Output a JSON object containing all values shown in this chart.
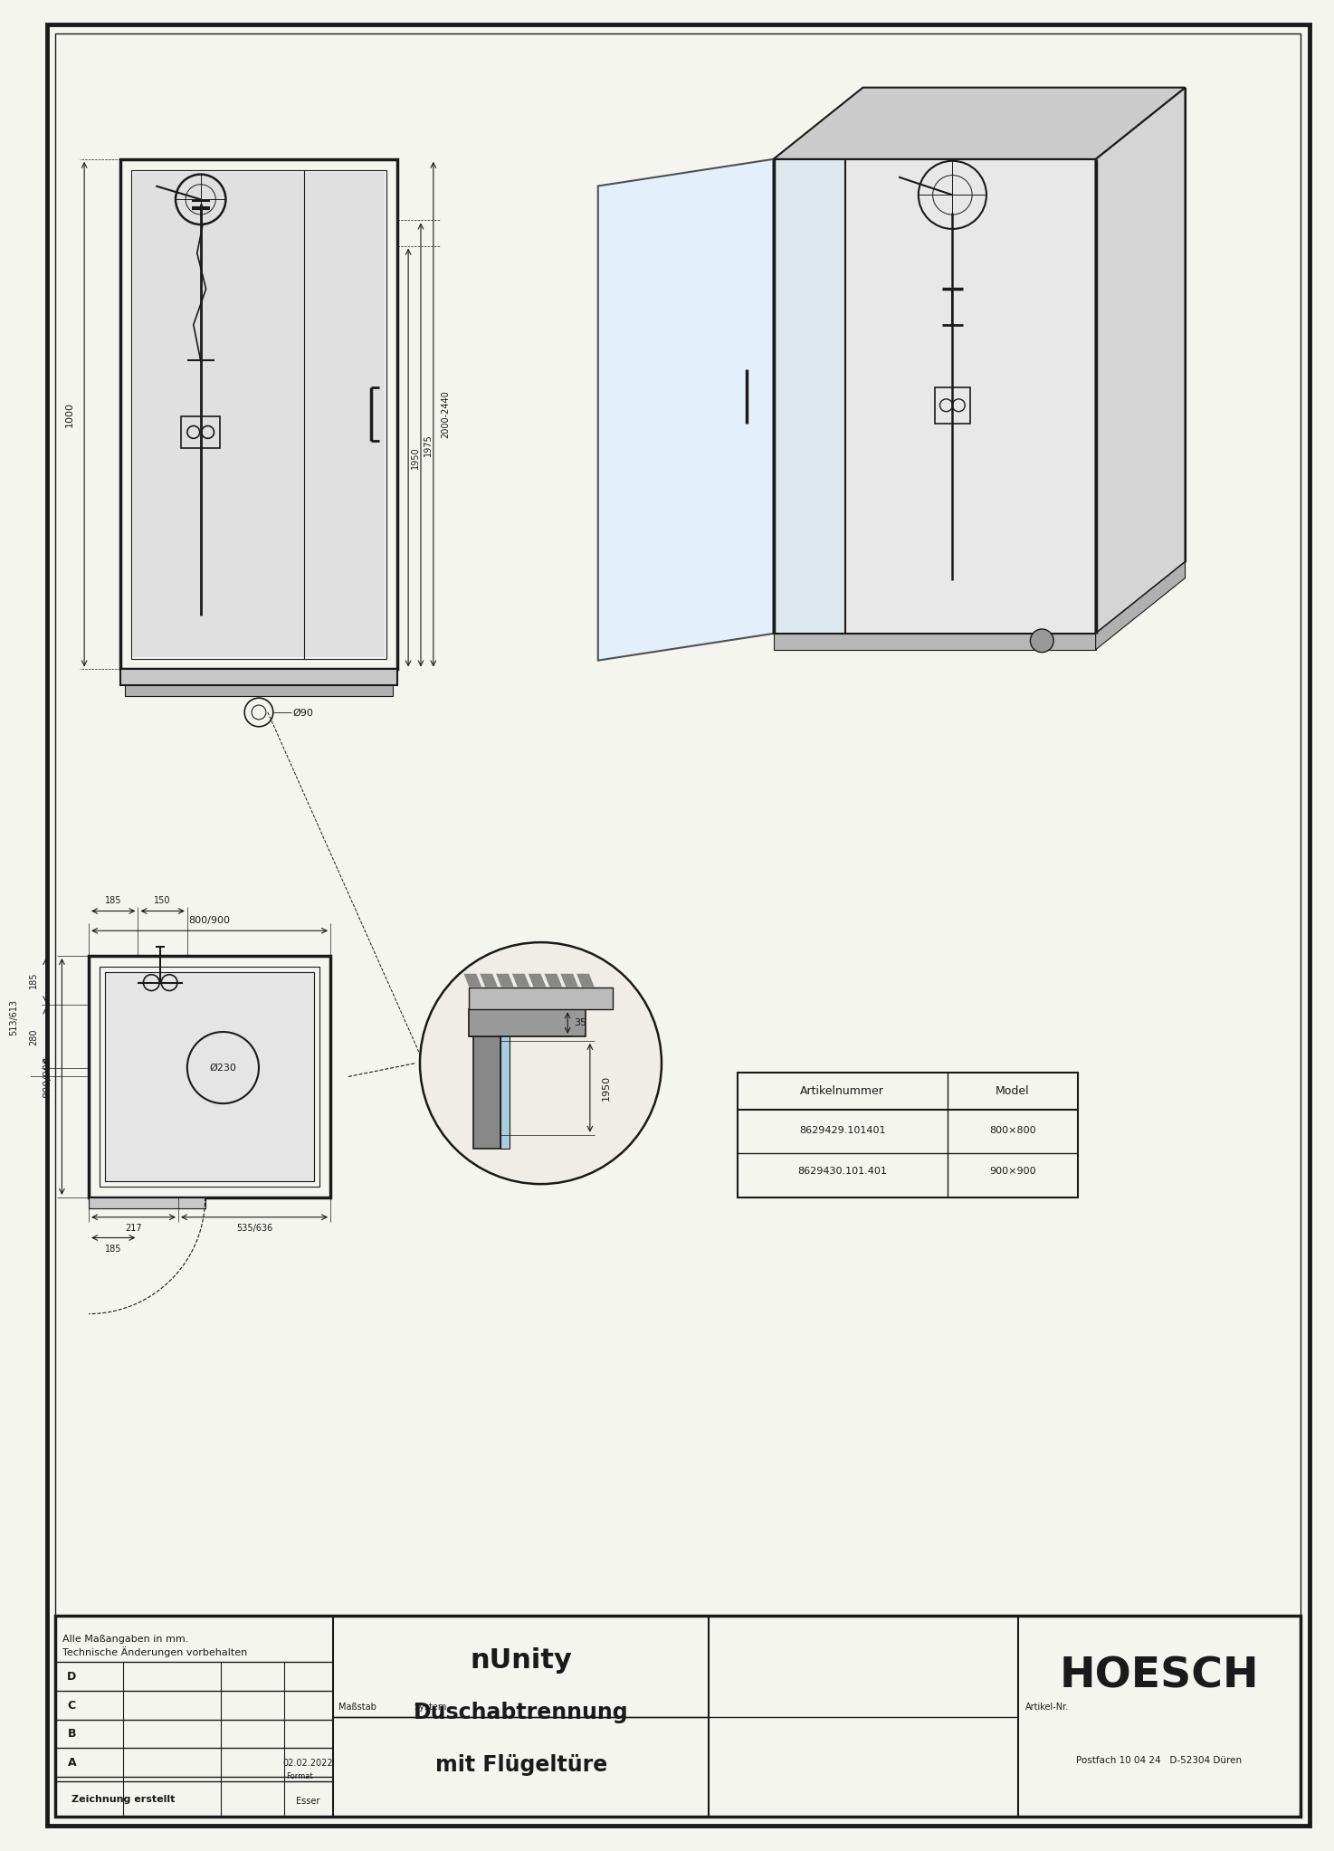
{
  "page_bg": "#f5f5f0",
  "line_color": "#1a1a1a",
  "title_main": "nUnity",
  "title_sub1": "Duschabtrennung",
  "title_sub2": "mit Flügeltüre",
  "company": "HOESCH",
  "company_sub": "Postfach 10 04 24   D-52304 Düren",
  "footer_left1": "Alle Maßangaben in mm.",
  "footer_left2": "Technische Änderungen vorbehalten",
  "footer_created": "Zeichnung erstellt",
  "footer_date": "02.02.2022",
  "footer_person": "Esser",
  "footer_format_label": "Format",
  "footer_masstab": "Maßstab",
  "footer_system": "System",
  "footer_artikel": "Artikel-Nr.",
  "table_header1": "Artikelnummer",
  "table_header2": "Model",
  "table_row1_num": "8629429.101401",
  "table_row1_mod": "800×800",
  "table_row2_num": "8629430.101.401",
  "table_row2_mod": "900×900",
  "dim_800_900": "800/900",
  "dim_185a": "185",
  "dim_150": "150",
  "dim_185b": "185",
  "dim_280": "280",
  "dim_230": "Ø230",
  "dim_800_900b": "800/900",
  "dim_217": "217",
  "dim_535_636": "535/636",
  "dim_185c": "185",
  "dim_513_613": "513/613",
  "dim_1000": "1000",
  "dim_90": "Ø90",
  "dim_1950a": "1950",
  "dim_1975": "1975",
  "dim_2000_2440": "2000-2440",
  "dim_1950b": "1950",
  "dim_35": "35"
}
